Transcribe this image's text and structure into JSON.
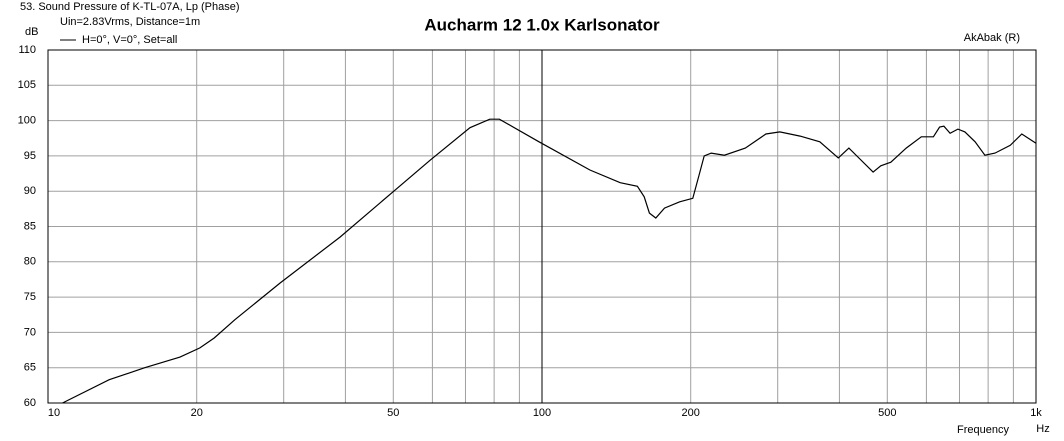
{
  "chart_data": {
    "type": "line",
    "title": "Aucharm 12 1.0x Karlsonator",
    "subtitle": "53. Sound Pressure of K-TL-07A, Lp (Phase)",
    "note": "Uin=2.83Vrms, Distance=1m",
    "credit": "AkAbak (R)",
    "ylabel": "dB",
    "xlabel": "Frequency",
    "xunit": "Hz",
    "xscale": "log",
    "grid": true,
    "xlim": [
      10,
      1000
    ],
    "ylim": [
      60,
      110
    ],
    "xticks": [
      10,
      20,
      50,
      100,
      200,
      500,
      {
        "value": 1000,
        "label": "1k"
      }
    ],
    "xgrid_minor": [
      30,
      40,
      60,
      70,
      80,
      90,
      300,
      400,
      600,
      700,
      800,
      900
    ],
    "xgrid_major": [
      100
    ],
    "yticks": [
      60,
      65,
      70,
      75,
      80,
      85,
      90,
      95,
      100,
      105,
      110
    ],
    "x": [
      10.7,
      13.3,
      15.7,
      18.5,
      20.3,
      21.7,
      23.9,
      29.5,
      39,
      50.5,
      59.4,
      71.5,
      78.4,
      82,
      98.6,
      125,
      144,
      156,
      161,
      165,
      170,
      177,
      190,
      202,
      208,
      213,
      220,
      234,
      258,
      284,
      303,
      333,
      365,
      398,
      418,
      438,
      468,
      485,
      508,
      546,
      586,
      620,
      638,
      651,
      670,
      695,
      718,
      753,
      788,
      826,
      887,
      936,
      1000
    ],
    "series": [
      {
        "name": "H=0°, V=0°, Set=all",
        "color": "#000000",
        "values": [
          60,
          63.3,
          65,
          66.5,
          67.8,
          69.2,
          71.8,
          77,
          83.5,
          90.2,
          94.4,
          99,
          100.2,
          100.2,
          97,
          93,
          91.2,
          90.7,
          89.2,
          86.9,
          86.2,
          87.6,
          88.5,
          89,
          92.3,
          95,
          95.4,
          95.1,
          96.1,
          98.1,
          98.4,
          97.8,
          97,
          94.7,
          96.1,
          94.7,
          92.7,
          93.6,
          94.1,
          96.1,
          97.7,
          97.7,
          99.1,
          99.2,
          98.2,
          98.8,
          98.4,
          97,
          95.1,
          95.4,
          96.5,
          98.1,
          96.8
        ]
      }
    ]
  }
}
